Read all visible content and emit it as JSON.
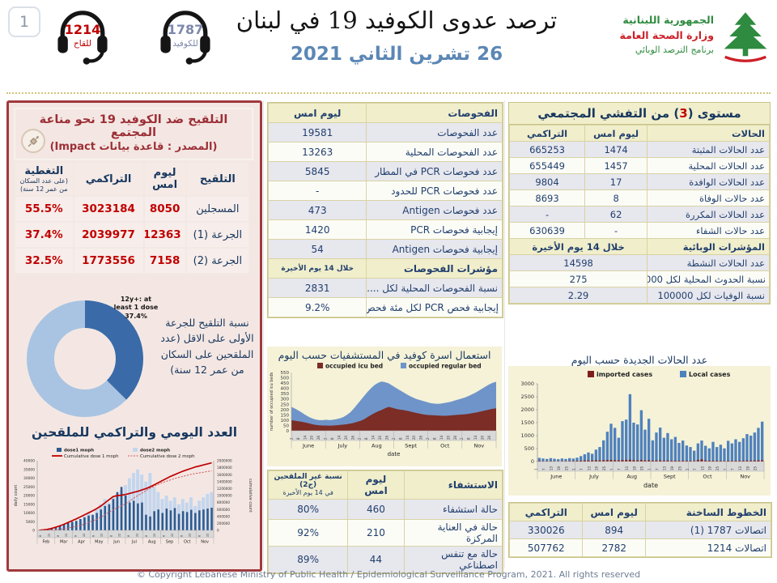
{
  "page": {
    "number": "1",
    "footer": "© Copyright Lebanese Ministry of Public Health / Epidemiological Surveillance Program, 2021. All rights reserved"
  },
  "header": {
    "title": "ترصد عدوى الكوفيد 19 في لبنان",
    "date": "26 تشرين الثاني 2021",
    "hotlines": [
      {
        "number": "1214",
        "label": "للقاح",
        "color": "#c00000"
      },
      {
        "number": "1787",
        "label": "للكوفيد",
        "color": "#7d88ab"
      }
    ],
    "logo": {
      "line1": "الجمهورية اللبنانية",
      "line2": "وزارة الصحة العامة",
      "line3": "برنامج الترصد الوبائي"
    }
  },
  "vax_panel": {
    "title": "التلقيح ضد الكوفيد 19  نحو مناعة المجتمع",
    "source": "(المصدر : قاعدة بيانات Impact)",
    "donut_side_label": "نسبة التلقيح للجرعة الأولى على الاقل (عدد الملقحين على السكان من عمر 12 سنة)",
    "table": {
      "cls": "vaxtbl",
      "widths": [
        "27%",
        "18%",
        "30%",
        "25%"
      ],
      "rows": [
        {
          "bg": "h",
          "cells": [
            {
              "t": "التلقيح",
              "c": "v hb"
            },
            {
              "t": "ليوم امس",
              "c": "v hb"
            },
            {
              "t": "التراكمي",
              "c": "v hb"
            },
            {
              "t": "التغطية",
              "c": "v hb",
              "n": "(على عدد السكان من عمر 12 سنة)"
            }
          ]
        },
        {
          "bg": "b",
          "cells": [
            {
              "t": "المسجلين",
              "c": "v"
            },
            {
              "t": "8050",
              "c": "red"
            },
            {
              "t": "3023184",
              "c": "red"
            },
            {
              "t": "55.5%",
              "c": "red"
            }
          ]
        },
        {
          "bg": "b",
          "cells": [
            {
              "t": "الجرعة (1)",
              "c": "v"
            },
            {
              "t": "12363",
              "c": "red"
            },
            {
              "t": "2039977",
              "c": "red"
            },
            {
              "t": "37.4%",
              "c": "red"
            }
          ]
        },
        {
          "bg": "b",
          "cells": [
            {
              "t": "الجرعة (2)",
              "c": "v"
            },
            {
              "t": "7158",
              "c": "red"
            },
            {
              "t": "1773556",
              "c": "red"
            },
            {
              "t": "32.5%",
              "c": "red"
            }
          ]
        }
      ]
    }
  },
  "tests_table": {
    "cls": "t-tests",
    "widths": [
      "58%",
      "42%"
    ],
    "rows": [
      {
        "bg": "h",
        "cells": [
          {
            "t": "الفحوصات",
            "c": "l"
          },
          {
            "t": "ليوم امس",
            "c": "v"
          }
        ]
      },
      {
        "bg": "a",
        "cells": [
          {
            "t": "عدد الفحوصات",
            "c": "l"
          },
          {
            "t": "19581",
            "c": "v"
          }
        ]
      },
      {
        "bg": "b",
        "cells": [
          {
            "t": "عدد الفحوصات المحلية",
            "c": "l"
          },
          {
            "t": "13263",
            "c": "v"
          }
        ]
      },
      {
        "bg": "a",
        "cells": [
          {
            "t": "عدد فحوصات PCR في المطار",
            "c": "l"
          },
          {
            "t": "5845",
            "c": "v"
          }
        ]
      },
      {
        "bg": "b",
        "cells": [
          {
            "t": "عدد فحوصات PCR للحدود",
            "c": "l"
          },
          {
            "t": "-",
            "c": "v"
          }
        ]
      },
      {
        "bg": "a",
        "cells": [
          {
            "t": "عدد فحوصات Antigen",
            "c": "l"
          },
          {
            "t": "473",
            "c": "v"
          }
        ]
      },
      {
        "bg": "b",
        "cells": [
          {
            "t": "إيجابية فحوصات PCR",
            "c": "l"
          },
          {
            "t": "1420",
            "c": "v"
          }
        ]
      },
      {
        "bg": "a",
        "cells": [
          {
            "t": "إيجابية فحوصات Antigen",
            "c": "l"
          },
          {
            "t": "54",
            "c": "v"
          }
        ]
      },
      {
        "bg": "s",
        "cells": [
          {
            "t": "مؤشرات الفحوصات",
            "c": "l hb"
          },
          {
            "t": "خلال 14 يوم الأخيرة",
            "c": "sm"
          }
        ]
      },
      {
        "bg": "a",
        "cells": [
          {
            "t": "نسبة الفحوصات المحلية لكل ......",
            "c": "l"
          },
          {
            "t": "2831",
            "c": "v"
          }
        ]
      },
      {
        "bg": "b",
        "cells": [
          {
            "t": "إيجابية فحص PCR لكل مئة فحص",
            "c": "l"
          },
          {
            "t": "9.2%",
            "c": "v"
          }
        ]
      }
    ]
  },
  "community_table": {
    "title_pre": "مستوى (",
    "title_num": "3",
    "title_post": ") من التفشي المجتمعي",
    "cls": "t-comm",
    "widths": [
      "47%",
      "24%",
      "29%"
    ],
    "rows": [
      {
        "bg": "h",
        "cells": [
          {
            "t": "الحالات",
            "c": "l"
          },
          {
            "t": "ليوم امس",
            "c": "v"
          },
          {
            "t": "التراكمي",
            "c": "v"
          }
        ]
      },
      {
        "bg": "a",
        "cells": [
          {
            "t": "عدد الحالات المثبتة",
            "c": "l"
          },
          {
            "t": "1474",
            "c": "v"
          },
          {
            "t": "665253",
            "c": "v"
          }
        ]
      },
      {
        "bg": "b",
        "cells": [
          {
            "t": "عدد الحالات المحلية",
            "c": "l"
          },
          {
            "t": "1457",
            "c": "v"
          },
          {
            "t": "655449",
            "c": "v"
          }
        ]
      },
      {
        "bg": "a",
        "cells": [
          {
            "t": "عدد الحالات الوافدة",
            "c": "l"
          },
          {
            "t": "17",
            "c": "v"
          },
          {
            "t": "9804",
            "c": "v"
          }
        ]
      },
      {
        "bg": "b",
        "cells": [
          {
            "t": "عدد حالات الوفاة",
            "c": "l"
          },
          {
            "t": "8",
            "c": "v"
          },
          {
            "t": "8693",
            "c": "v"
          }
        ]
      },
      {
        "bg": "a",
        "cells": [
          {
            "t": "عدد الحالات المكررة",
            "c": "l"
          },
          {
            "t": "62",
            "c": "v"
          },
          {
            "t": "-",
            "c": "v"
          }
        ]
      },
      {
        "bg": "b",
        "cells": [
          {
            "t": "عدد حالات الشفاء",
            "c": "l"
          },
          {
            "t": "-",
            "c": "v"
          },
          {
            "t": "630639",
            "c": "v"
          }
        ]
      },
      {
        "bg": "s",
        "cells": [
          {
            "t": "المؤشرات الوبائية",
            "c": "l hb"
          },
          {
            "t": "خلال 14 يوم الأخيرة",
            "c": "sm",
            "s": 2
          }
        ]
      },
      {
        "bg": "a",
        "cells": [
          {
            "t": "عدد الحالات النشطة",
            "c": "l"
          },
          {
            "t": "14598",
            "c": "v",
            "s": 2
          }
        ]
      },
      {
        "bg": "b",
        "cells": [
          {
            "t": "نسبة الحدوث المحلية لكل 100000",
            "c": "l"
          },
          {
            "t": "275",
            "c": "v",
            "s": 2
          }
        ]
      },
      {
        "bg": "a",
        "cells": [
          {
            "t": "نسبة الوفيات لكل 100000",
            "c": "l"
          },
          {
            "t": "2.29",
            "c": "v",
            "s": 2
          }
        ]
      }
    ]
  },
  "hosp_table": {
    "cls": "t-hosp",
    "widths": [
      "42%",
      "24%",
      "34%"
    ],
    "rows": [
      {
        "bg": "h",
        "cells": [
          {
            "t": "الاستشفاء",
            "c": "l"
          },
          {
            "t": "ليوم امس",
            "c": "v"
          },
          {
            "t": "نسبة غير الملقحين (ج2)",
            "c": "sm",
            "n": "في 14 يوم الأخيرة"
          }
        ]
      },
      {
        "bg": "a",
        "cells": [
          {
            "t": "حالة استشفاء",
            "c": "l"
          },
          {
            "t": "460",
            "c": "v"
          },
          {
            "t": "80%",
            "c": "v"
          }
        ]
      },
      {
        "bg": "b",
        "cells": [
          {
            "t": "حالة في العناية المركزة",
            "c": "l"
          },
          {
            "t": "210",
            "c": "v"
          },
          {
            "t": "92%",
            "c": "v"
          }
        ]
      },
      {
        "bg": "a",
        "cells": [
          {
            "t": "حالة مع تنفس اصطناعي",
            "c": "l"
          },
          {
            "t": "44",
            "c": "v"
          },
          {
            "t": "89%",
            "c": "v"
          }
        ]
      }
    ]
  },
  "hotlines_table": {
    "cls": "t-hot",
    "widths": [
      "48%",
      "24%",
      "28%"
    ],
    "rows": [
      {
        "bg": "h",
        "cells": [
          {
            "t": "الخطوط الساخنة",
            "c": "l"
          },
          {
            "t": "ليوم امس",
            "c": "v"
          },
          {
            "t": "التراكمي",
            "c": "v"
          }
        ]
      },
      {
        "bg": "a",
        "cells": [
          {
            "t": "اتصالات 1787 (1)",
            "c": "l"
          },
          {
            "t": "894",
            "c": "v"
          },
          {
            "t": "330026",
            "c": "v"
          }
        ]
      },
      {
        "bg": "b",
        "cells": [
          {
            "t": "اتصالات 1214",
            "c": "l"
          },
          {
            "t": "2782",
            "c": "v"
          },
          {
            "t": "507762",
            "c": "v"
          }
        ]
      }
    ]
  },
  "chart_data": [
    {
      "id": "hospital_beds",
      "type": "stacked_area",
      "title": "استعمال اسرة كوفيد في المستشفيات حسب اليوم",
      "legend": [
        "occupied icu bed",
        "occupied regular bed"
      ],
      "colors": [
        "#7b2d26",
        "#6f94c9"
      ],
      "xlabel": "date",
      "ylabel": "number of occupied icu beds",
      "ylim": [
        0,
        550
      ],
      "ystep": 50,
      "months": [
        "June",
        "July",
        "Aug",
        "Sept",
        "Oct",
        "Nov"
      ],
      "day_ticks": [
        2,
        8,
        14,
        20,
        26
      ],
      "icu": [
        100,
        95,
        90,
        85,
        78,
        70,
        62,
        56,
        52,
        50,
        50,
        48,
        50,
        52,
        55,
        58,
        62,
        68,
        75,
        85,
        95,
        110,
        130,
        150,
        168,
        183,
        197,
        212,
        225,
        218,
        208,
        200,
        196,
        191,
        184,
        176,
        168,
        161,
        155,
        150,
        148,
        146,
        144,
        142,
        141,
        142,
        145,
        148,
        151,
        153,
        156,
        160,
        165,
        171,
        178,
        186,
        193,
        200,
        207,
        212
      ],
      "total": [
        225,
        210,
        192,
        172,
        150,
        132,
        116,
        106,
        100,
        100,
        104,
        100,
        104,
        110,
        118,
        130,
        150,
        175,
        210,
        250,
        290,
        330,
        368,
        403,
        432,
        452,
        465,
        458,
        448,
        428,
        408,
        388,
        368,
        348,
        330,
        314,
        300,
        290,
        281,
        271,
        262,
        257,
        254,
        256,
        261,
        267,
        274,
        284,
        294,
        304,
        314,
        328,
        343,
        359,
        378,
        398,
        418,
        438,
        452,
        462
      ]
    },
    {
      "id": "new_cases",
      "type": "bars",
      "title": "عدد الحالات الجديدة حسب اليوم",
      "legend": [
        "imported cases",
        "Local cases"
      ],
      "colors": [
        "#7f1f1c",
        "#4f81bd"
      ],
      "xlabel": "date",
      "ylim": [
        0,
        3000
      ],
      "ystep": 500,
      "months": [
        "June",
        "July",
        "Aug",
        "Sept",
        "Oct",
        "Nov"
      ],
      "day_ticks": [
        1,
        7,
        13,
        19,
        25
      ],
      "local": [
        140,
        120,
        100,
        130,
        110,
        90,
        120,
        100,
        130,
        115,
        150,
        210,
        280,
        350,
        300,
        460,
        560,
        820,
        1150,
        1460,
        1300,
        920,
        1560,
        1620,
        2600,
        1500,
        1430,
        1980,
        1230,
        1650,
        820,
        1120,
        1310,
        920,
        1100,
        860,
        950,
        720,
        810,
        620,
        560,
        420,
        700,
        810,
        610,
        510,
        760,
        560,
        650,
        510,
        800,
        700,
        860,
        760,
        900,
        1060,
        1000,
        1120,
        1300,
        1540
      ],
      "imported": [
        25,
        20,
        18,
        22,
        20,
        15,
        18,
        20,
        22,
        25,
        30,
        35,
        40,
        45,
        40,
        50,
        45,
        50,
        55,
        60,
        50,
        45,
        55,
        60,
        65,
        50,
        45,
        55,
        40,
        50,
        35,
        40,
        45,
        35,
        40,
        30,
        35,
        30,
        35,
        30,
        28,
        25,
        60,
        80,
        40,
        30,
        35,
        30,
        28,
        25,
        30,
        28,
        32,
        30,
        35,
        38,
        36,
        40,
        45,
        50
      ]
    },
    {
      "id": "vaccination_daily",
      "type": "combo",
      "title": "العدد اليومي والتراكمي للملقحين",
      "legend": [
        "dose1  moph",
        "dose2  moph",
        "Cumulative dose 1 moph",
        "Cumulative dose 2 moph"
      ],
      "colors": [
        "#2e5a8f",
        "#c3d6ee",
        "#c00000",
        "#cf5b5b"
      ],
      "ylabel_left": "daily count",
      "ylabel_right": "cumulative count",
      "ylim_left": [
        0,
        40000
      ],
      "ystep_left": 5000,
      "ylim_right": [
        0,
        2000000
      ],
      "ystep_right": 200000,
      "months": [
        "Feb",
        "Mar",
        "Apr",
        "May",
        "Jun",
        "Jul",
        "Aug",
        "Sep",
        "Oct",
        "Nov"
      ],
      "day_ticks": [
        8,
        22
      ],
      "dose1": [
        300,
        600,
        900,
        1300,
        2000,
        2800,
        3500,
        4200,
        5000,
        5500,
        6500,
        7500,
        8500,
        9000,
        10000,
        12000,
        14000,
        15000,
        18000,
        22000,
        25000,
        20000,
        16000,
        17000,
        15500,
        16000,
        9000,
        8000,
        11000,
        12000,
        10000,
        12500,
        11500,
        12800,
        9500,
        11000,
        10500,
        11800,
        10000,
        11500,
        12000,
        12500,
        13000
      ],
      "dose2": [
        50,
        100,
        200,
        400,
        800,
        1500,
        2500,
        3500,
        4500,
        5000,
        6500,
        8000,
        10000,
        9000,
        12000,
        15000,
        18000,
        16000,
        19000,
        21000,
        23000,
        26000,
        30000,
        33000,
        35000,
        32000,
        28000,
        33000,
        25000,
        22000,
        18000,
        20000,
        17000,
        19000,
        15000,
        18000,
        16000,
        19000,
        14000,
        17000,
        19000,
        21000,
        22000
      ],
      "cum1": [
        5000,
        15000,
        30000,
        55000,
        90000,
        130000,
        175000,
        225000,
        280000,
        330000,
        385000,
        445000,
        505000,
        560000,
        625000,
        700000,
        790000,
        880000,
        970000,
        1000000,
        1010000,
        1030000,
        1060000,
        1090000,
        1120000,
        1160000,
        1200000,
        1250000,
        1310000,
        1370000,
        1430000,
        1490000,
        1550000,
        1600000,
        1650000,
        1700000,
        1740000,
        1780000,
        1820000,
        1850000,
        1880000,
        1910000,
        1940000
      ],
      "cum2": [
        1000,
        3000,
        6000,
        10000,
        18000,
        30000,
        45000,
        65000,
        90000,
        115000,
        145000,
        180000,
        225000,
        270000,
        320000,
        380000,
        450000,
        520000,
        590000,
        650000,
        700000,
        760000,
        840000,
        920000,
        1000000,
        1070000,
        1140000,
        1210000,
        1270000,
        1320000,
        1370000,
        1410000,
        1450000,
        1490000,
        1520000,
        1550000,
        1580000,
        1610000,
        1630000,
        1650000,
        1670000,
        1690000,
        1710000
      ]
    },
    {
      "id": "first_dose_share",
      "type": "donut",
      "label": "12y+: at least 1 dose 37.4%",
      "values": [
        37.4,
        62.6
      ],
      "colors": [
        "#3a6ba8",
        "#a9c4e2"
      ]
    }
  ]
}
